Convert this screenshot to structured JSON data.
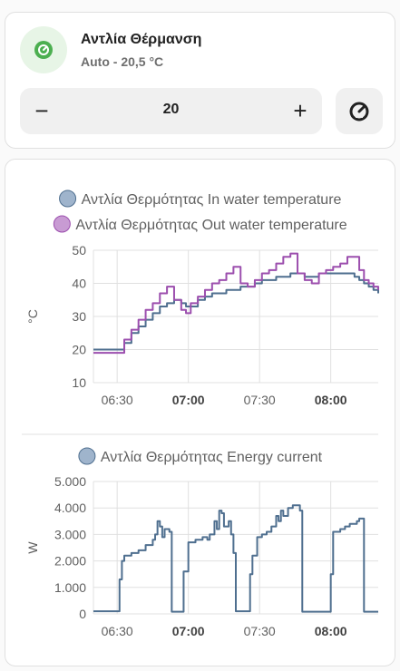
{
  "entity": {
    "name": "Αντλία Θέρμανση",
    "state": "Auto - 20,5 °C",
    "icon": "heat-pump-icon",
    "accent_color": "#4caf50"
  },
  "stepper": {
    "minus_label": "−",
    "value": "20",
    "plus_label": "+"
  },
  "mode_button": {
    "icon": "gauge-icon"
  },
  "chart_data": [
    {
      "type": "line",
      "step": true,
      "ylabel": "°C",
      "ylim": [
        10,
        50
      ],
      "yticks": [
        "10",
        "20",
        "30",
        "40",
        "50"
      ],
      "xticks": [
        "06:30",
        "07:00",
        "07:30",
        "08:00"
      ],
      "xticks_bold": [
        false,
        true,
        false,
        true
      ],
      "x_start": "06:20",
      "x_end": "08:20",
      "grid": true,
      "legend": "top",
      "series": [
        {
          "name": "Αντλία Θερμότητας In water temperature",
          "color": "#4f6f8f",
          "marker_color": "#9fb4cc",
          "x": [
            "06:20",
            "06:31",
            "06:33",
            "06:36",
            "06:39",
            "06:42",
            "06:45",
            "06:48",
            "06:51",
            "06:54",
            "06:57",
            "06:59",
            "07:01",
            "07:04",
            "07:07",
            "07:10",
            "07:13",
            "07:16",
            "07:19",
            "07:22",
            "07:25",
            "07:28",
            "07:31",
            "07:34",
            "07:37",
            "07:40",
            "07:43",
            "07:46",
            "07:49",
            "07:52",
            "07:55",
            "07:58",
            "08:01",
            "08:04",
            "08:07",
            "08:10",
            "08:12",
            "08:14",
            "08:16",
            "08:18",
            "08:20"
          ],
          "values": [
            20,
            20,
            22,
            25,
            27,
            29,
            31,
            33,
            34,
            35,
            34,
            33,
            33,
            35,
            36,
            37,
            37,
            38,
            38,
            39,
            39,
            40,
            41,
            41,
            42,
            42,
            43,
            43,
            42,
            42,
            43,
            43,
            43,
            43,
            43,
            42,
            41,
            40,
            39,
            38,
            37
          ]
        },
        {
          "name": "Αντλία Θερμότητας Out water temperature",
          "color": "#9c4fae",
          "marker_color": "#c89bd3",
          "x": [
            "06:20",
            "06:31",
            "06:33",
            "06:36",
            "06:39",
            "06:42",
            "06:45",
            "06:48",
            "06:51",
            "06:54",
            "06:57",
            "06:59",
            "07:01",
            "07:04",
            "07:07",
            "07:10",
            "07:13",
            "07:16",
            "07:19",
            "07:22",
            "07:25",
            "07:28",
            "07:31",
            "07:34",
            "07:37",
            "07:40",
            "07:43",
            "07:46",
            "07:49",
            "07:52",
            "07:55",
            "07:58",
            "08:01",
            "08:04",
            "08:07",
            "08:10",
            "08:12",
            "08:14",
            "08:16",
            "08:18",
            "08:20"
          ],
          "values": [
            19,
            19,
            23,
            26,
            29,
            32,
            34,
            37,
            39,
            35,
            32,
            31,
            34,
            36,
            38,
            40,
            41,
            43,
            45,
            40,
            39,
            41,
            43,
            44,
            46,
            48,
            49,
            43,
            41,
            40,
            43,
            44,
            45,
            46,
            48,
            48,
            44,
            41,
            40,
            39,
            38
          ]
        }
      ]
    },
    {
      "type": "line",
      "step": true,
      "ylabel": "W",
      "ylim": [
        0,
        5000
      ],
      "yticks": [
        "0",
        "1.000",
        "2.000",
        "3.000",
        "4.000",
        "5.000"
      ],
      "xticks": [
        "06:30",
        "07:00",
        "07:30",
        "08:00"
      ],
      "xticks_bold": [
        false,
        true,
        false,
        true
      ],
      "x_start": "06:20",
      "x_end": "08:20",
      "grid": true,
      "legend": "top",
      "series": [
        {
          "name": "Αντλία Θερμότητας Energy current",
          "color": "#4f6f8f",
          "marker_color": "#9fb4cc",
          "x": [
            "06:20",
            "06:30",
            "06:31",
            "06:32",
            "06:33",
            "06:36",
            "06:39",
            "06:42",
            "06:45",
            "06:46",
            "06:47",
            "06:48",
            "06:49",
            "06:50",
            "06:52",
            "06:53",
            "06:55",
            "06:56",
            "06:57",
            "06:58",
            "07:00",
            "07:03",
            "07:06",
            "07:08",
            "07:09",
            "07:10",
            "07:11",
            "07:12",
            "07:13",
            "07:14",
            "07:15",
            "07:17",
            "07:18",
            "07:19",
            "07:20",
            "07:22",
            "07:25",
            "07:26",
            "07:27",
            "07:29",
            "07:31",
            "07:33",
            "07:35",
            "07:37",
            "07:38",
            "07:39",
            "07:40",
            "07:42",
            "07:44",
            "07:47",
            "07:48",
            "07:50",
            "07:53",
            "07:56",
            "07:58",
            "08:00",
            "08:01",
            "08:02",
            "08:04",
            "08:06",
            "08:08",
            "08:11",
            "08:12",
            "08:14",
            "08:17",
            "08:20"
          ],
          "values": [
            100,
            100,
            1300,
            2000,
            2200,
            2300,
            2400,
            2600,
            2800,
            3000,
            3500,
            3300,
            2900,
            3200,
            3100,
            80,
            80,
            80,
            80,
            1600,
            2700,
            2800,
            2900,
            2800,
            3000,
            3000,
            3500,
            3200,
            3900,
            3800,
            3300,
            3500,
            3000,
            2300,
            100,
            100,
            100,
            1500,
            2200,
            2900,
            3000,
            3100,
            3300,
            3700,
            3500,
            3900,
            3700,
            4000,
            4100,
            3900,
            80,
            80,
            80,
            80,
            80,
            1500,
            3100,
            3100,
            3200,
            3300,
            3400,
            3500,
            3600,
            80,
            80,
            80
          ]
        }
      ]
    }
  ]
}
